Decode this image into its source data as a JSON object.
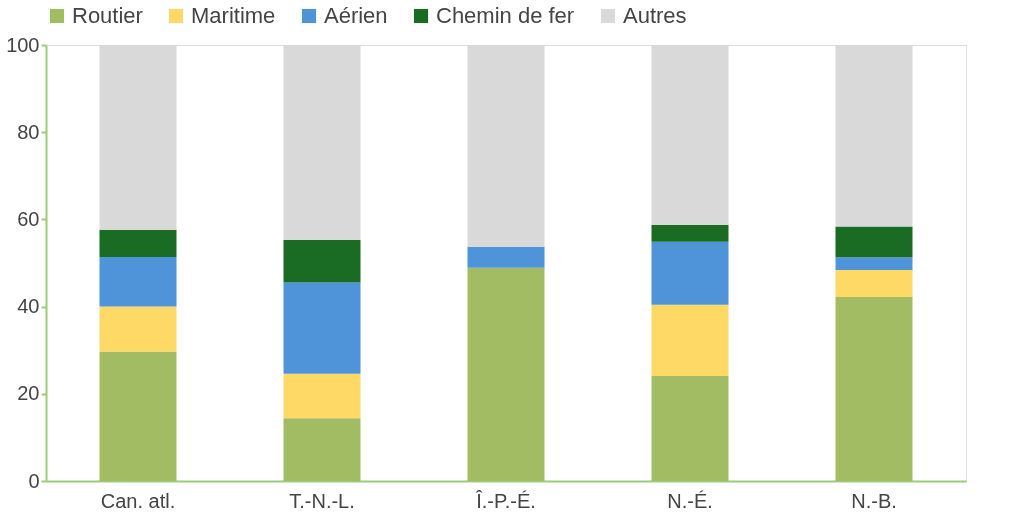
{
  "chart_data": {
    "type": "bar",
    "stacked": true,
    "categories": [
      "Can. atl.",
      "T.-N.-L.",
      "Î.-P.-É.",
      "N.-É.",
      "N.-B."
    ],
    "series": [
      {
        "name": "Routier",
        "color": "#a2bc64",
        "values": [
          29.7,
          14.4,
          48.9,
          24.1,
          42.2
        ]
      },
      {
        "name": "Maritime",
        "color": "#ffd966",
        "values": [
          10.3,
          10.2,
          0,
          16.3,
          6.2
        ]
      },
      {
        "name": "Aérien",
        "color": "#4f94d9",
        "values": [
          11.4,
          20.9,
          4.8,
          14.5,
          2.9
        ]
      },
      {
        "name": "Chemin de fer",
        "color": "#1a6b23",
        "values": [
          6.2,
          9.8,
          0,
          3.8,
          7.1
        ]
      },
      {
        "name": "Autres",
        "color": "#d9d9d9",
        "values": [
          42.4,
          44.7,
          46.3,
          41.3,
          41.6
        ]
      }
    ],
    "ylim": [
      0,
      100
    ],
    "yticks": [
      0,
      20,
      40,
      60,
      80,
      100
    ],
    "grid": false,
    "legend": "top"
  }
}
